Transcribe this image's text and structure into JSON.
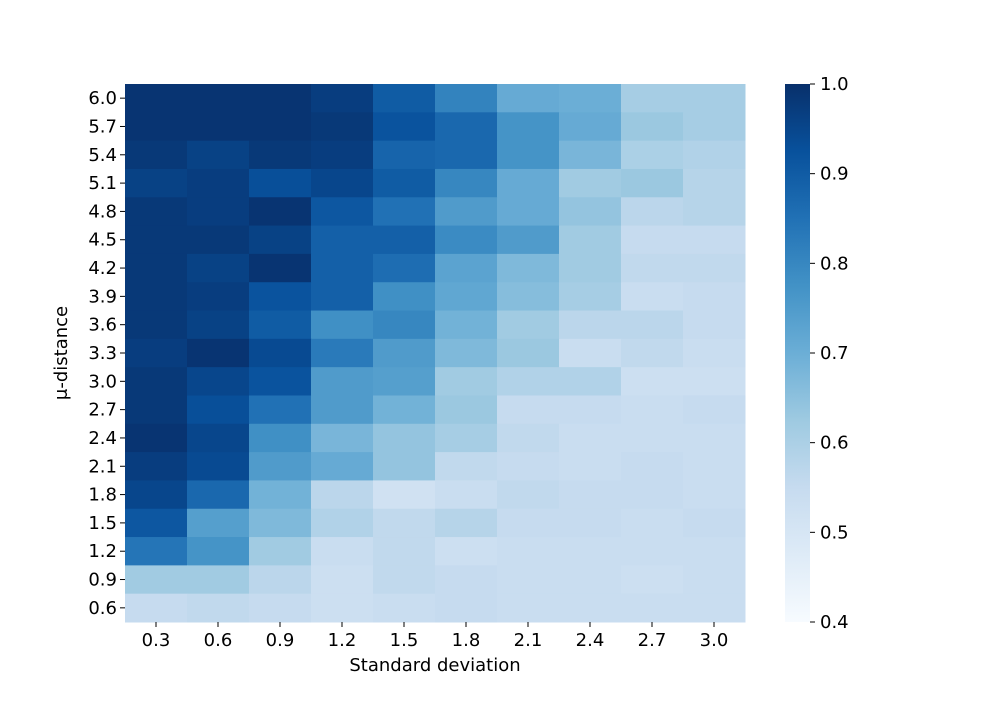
{
  "chart_data": {
    "type": "heatmap",
    "xlabel": "Standard deviation",
    "ylabel": "μ-distance",
    "categories": [
      "0.3",
      "0.6",
      "0.9",
      "1.2",
      "1.5",
      "1.8",
      "2.1",
      "2.4",
      "2.7",
      "3.0"
    ],
    "y_categories": [
      "6.0",
      "5.7",
      "5.4",
      "5.1",
      "4.8",
      "4.5",
      "4.2",
      "3.9",
      "3.6",
      "3.3",
      "3.0",
      "2.7",
      "2.4",
      "2.1",
      "1.8",
      "1.5",
      "1.2",
      "0.9",
      "0.6"
    ],
    "values": [
      [
        0.99,
        0.99,
        0.99,
        0.97,
        0.9,
        0.81,
        0.71,
        0.7,
        0.61,
        0.61
      ],
      [
        0.99,
        0.99,
        0.99,
        0.98,
        0.92,
        0.87,
        0.77,
        0.71,
        0.63,
        0.61
      ],
      [
        0.98,
        0.96,
        0.98,
        0.97,
        0.88,
        0.87,
        0.77,
        0.68,
        0.6,
        0.59
      ],
      [
        0.96,
        0.97,
        0.93,
        0.95,
        0.9,
        0.8,
        0.71,
        0.62,
        0.63,
        0.58
      ],
      [
        0.98,
        0.97,
        0.99,
        0.91,
        0.85,
        0.75,
        0.71,
        0.64,
        0.57,
        0.58
      ],
      [
        0.98,
        0.98,
        0.96,
        0.89,
        0.89,
        0.79,
        0.75,
        0.62,
        0.55,
        0.55
      ],
      [
        0.98,
        0.96,
        0.99,
        0.89,
        0.86,
        0.73,
        0.67,
        0.62,
        0.56,
        0.56
      ],
      [
        0.98,
        0.97,
        0.92,
        0.89,
        0.78,
        0.72,
        0.66,
        0.61,
        0.54,
        0.55
      ],
      [
        0.98,
        0.96,
        0.9,
        0.78,
        0.8,
        0.69,
        0.62,
        0.57,
        0.57,
        0.55
      ],
      [
        0.97,
        0.99,
        0.94,
        0.83,
        0.75,
        0.67,
        0.63,
        0.54,
        0.56,
        0.54
      ],
      [
        0.98,
        0.95,
        0.92,
        0.75,
        0.74,
        0.62,
        0.59,
        0.59,
        0.53,
        0.53
      ],
      [
        0.98,
        0.93,
        0.85,
        0.75,
        0.69,
        0.63,
        0.55,
        0.55,
        0.54,
        0.55
      ],
      [
        0.99,
        0.95,
        0.78,
        0.68,
        0.64,
        0.61,
        0.56,
        0.54,
        0.54,
        0.54
      ],
      [
        0.97,
        0.94,
        0.75,
        0.71,
        0.64,
        0.56,
        0.55,
        0.54,
        0.55,
        0.54
      ],
      [
        0.95,
        0.87,
        0.69,
        0.57,
        0.52,
        0.54,
        0.56,
        0.55,
        0.55,
        0.54
      ],
      [
        0.91,
        0.74,
        0.67,
        0.59,
        0.56,
        0.58,
        0.55,
        0.55,
        0.54,
        0.55
      ],
      [
        0.84,
        0.77,
        0.62,
        0.54,
        0.56,
        0.53,
        0.54,
        0.54,
        0.54,
        0.54
      ],
      [
        0.62,
        0.62,
        0.57,
        0.53,
        0.56,
        0.55,
        0.54,
        0.54,
        0.53,
        0.54
      ],
      [
        0.55,
        0.56,
        0.55,
        0.53,
        0.54,
        0.55,
        0.54,
        0.54,
        0.54,
        0.54
      ]
    ],
    "clim": [
      0.4,
      1.0
    ],
    "cticks": [
      0.4,
      0.5,
      0.6,
      0.7,
      0.8,
      0.9,
      {
        "value": 1,
        "label": "1.0"
      }
    ],
    "colormap": [
      "#f7fbff",
      "#deebf7",
      "#c6dbef",
      "#9ecae1",
      "#6baed6",
      "#4292c6",
      "#2171b5",
      "#08519c",
      "#08306b"
    ]
  }
}
